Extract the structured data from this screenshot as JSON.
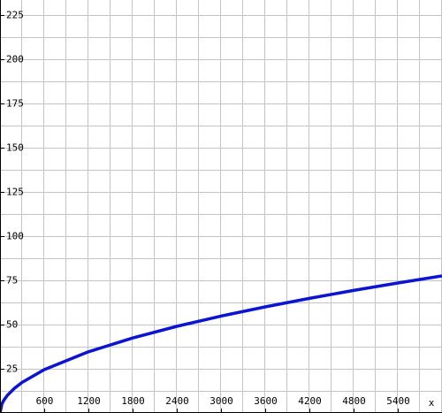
{
  "chart_data": {
    "type": "line",
    "xlabel": "x",
    "x": [
      0,
      25,
      50,
      100,
      200,
      300,
      600,
      1200,
      1800,
      2400,
      3000,
      3600,
      4200,
      4800,
      5400,
      6000
    ],
    "series": [
      {
        "color": "#0a14d2",
        "values": [
          0,
          5,
          7.1,
          10,
          14.1,
          17.3,
          24.5,
          34.6,
          42.4,
          49,
          54.8,
          60,
          64.8,
          69.3,
          73.5,
          77.5
        ]
      }
    ],
    "xlim": [
      0,
      6000
    ],
    "ylim": [
      0,
      233.5
    ],
    "xticks": [
      600,
      1200,
      1800,
      2400,
      3000,
      3600,
      4200,
      4800,
      5400
    ],
    "yticks": [
      25,
      50,
      75,
      100,
      125,
      150,
      175,
      200,
      225
    ],
    "xgrid": [
      300,
      600,
      900,
      1200,
      1500,
      1800,
      2100,
      2400,
      2700,
      3000,
      3300,
      3600,
      3900,
      4200,
      4500,
      4800,
      5100,
      5400,
      5700,
      6000
    ],
    "ygrid": [
      12.5,
      25,
      37.5,
      50,
      62.5,
      75,
      87.5,
      100,
      112.5,
      125,
      137.5,
      150,
      162.5,
      175,
      187.5,
      200,
      212.5,
      225
    ],
    "grid": true
  }
}
